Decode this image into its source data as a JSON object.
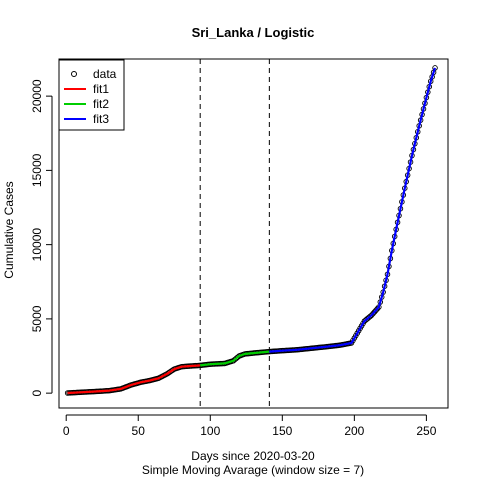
{
  "chart_data": {
    "type": "scatter",
    "title": "Sri_Lanka / Logistic",
    "xlabel": "Days since 2020-03-20",
    "subtitle": "Simple Moving Avarage (window size = 7)",
    "ylabel": "Cumulative Cases",
    "xlim": [
      -5,
      265
    ],
    "ylim": [
      -1000,
      22500
    ],
    "xticks": [
      0,
      50,
      100,
      150,
      200,
      250
    ],
    "yticks": [
      0,
      5000,
      10000,
      15000,
      20000
    ],
    "ytick_labels": [
      "0",
      "5000",
      "10000",
      "15000",
      "20000"
    ],
    "vlines": [
      93,
      141
    ],
    "legend_position": "top-left",
    "legend": [
      {
        "label": "data",
        "kind": "point",
        "color": "#000000"
      },
      {
        "label": "fit1",
        "kind": "line",
        "color": "#ff0000"
      },
      {
        "label": "fit2",
        "kind": "line",
        "color": "#00cd00"
      },
      {
        "label": "fit3",
        "kind": "line",
        "color": "#0000ff"
      }
    ],
    "data_points": {
      "x": [
        1,
        10,
        20,
        30,
        38,
        45,
        52,
        58,
        64,
        70,
        75,
        80,
        85,
        90,
        93,
        100,
        110,
        116,
        120,
        124,
        130,
        141,
        150,
        160,
        170,
        180,
        190,
        198,
        203,
        207,
        212,
        217,
        220,
        223,
        226,
        230,
        235,
        240,
        245,
        250,
        253,
        256
      ],
      "y": [
        10,
        60,
        110,
        170,
        290,
        550,
        740,
        850,
        1000,
        1300,
        1620,
        1780,
        1820,
        1850,
        1870,
        1950,
        2000,
        2180,
        2500,
        2640,
        2700,
        2800,
        2860,
        2920,
        3020,
        3120,
        3230,
        3380,
        4200,
        4850,
        5250,
        5800,
        6800,
        8000,
        9600,
        11500,
        13800,
        16000,
        18000,
        19900,
        21000,
        21900
      ]
    },
    "series": [
      {
        "name": "fit1",
        "color": "#ff0000",
        "x": [
          1,
          10,
          20,
          30,
          38,
          45,
          52,
          58,
          64,
          70,
          75,
          80,
          85,
          90,
          93
        ],
        "y": [
          10,
          60,
          110,
          170,
          290,
          550,
          740,
          850,
          1000,
          1300,
          1620,
          1780,
          1820,
          1850,
          1870
        ]
      },
      {
        "name": "fit2",
        "color": "#00cd00",
        "x": [
          93,
          100,
          110,
          116,
          120,
          124,
          130,
          141
        ],
        "y": [
          1870,
          1950,
          2000,
          2180,
          2500,
          2640,
          2700,
          2800
        ]
      },
      {
        "name": "fit3",
        "color": "#0000ff",
        "x": [
          141,
          150,
          160,
          170,
          180,
          190,
          198,
          203,
          207,
          212,
          217,
          220,
          223,
          226,
          230,
          235,
          240,
          245,
          250,
          253,
          256
        ],
        "y": [
          2800,
          2860,
          2920,
          3020,
          3120,
          3230,
          3380,
          4200,
          4850,
          5250,
          5800,
          6800,
          8000,
          9600,
          11500,
          13800,
          16000,
          18000,
          19900,
          21000,
          21900
        ]
      }
    ]
  }
}
